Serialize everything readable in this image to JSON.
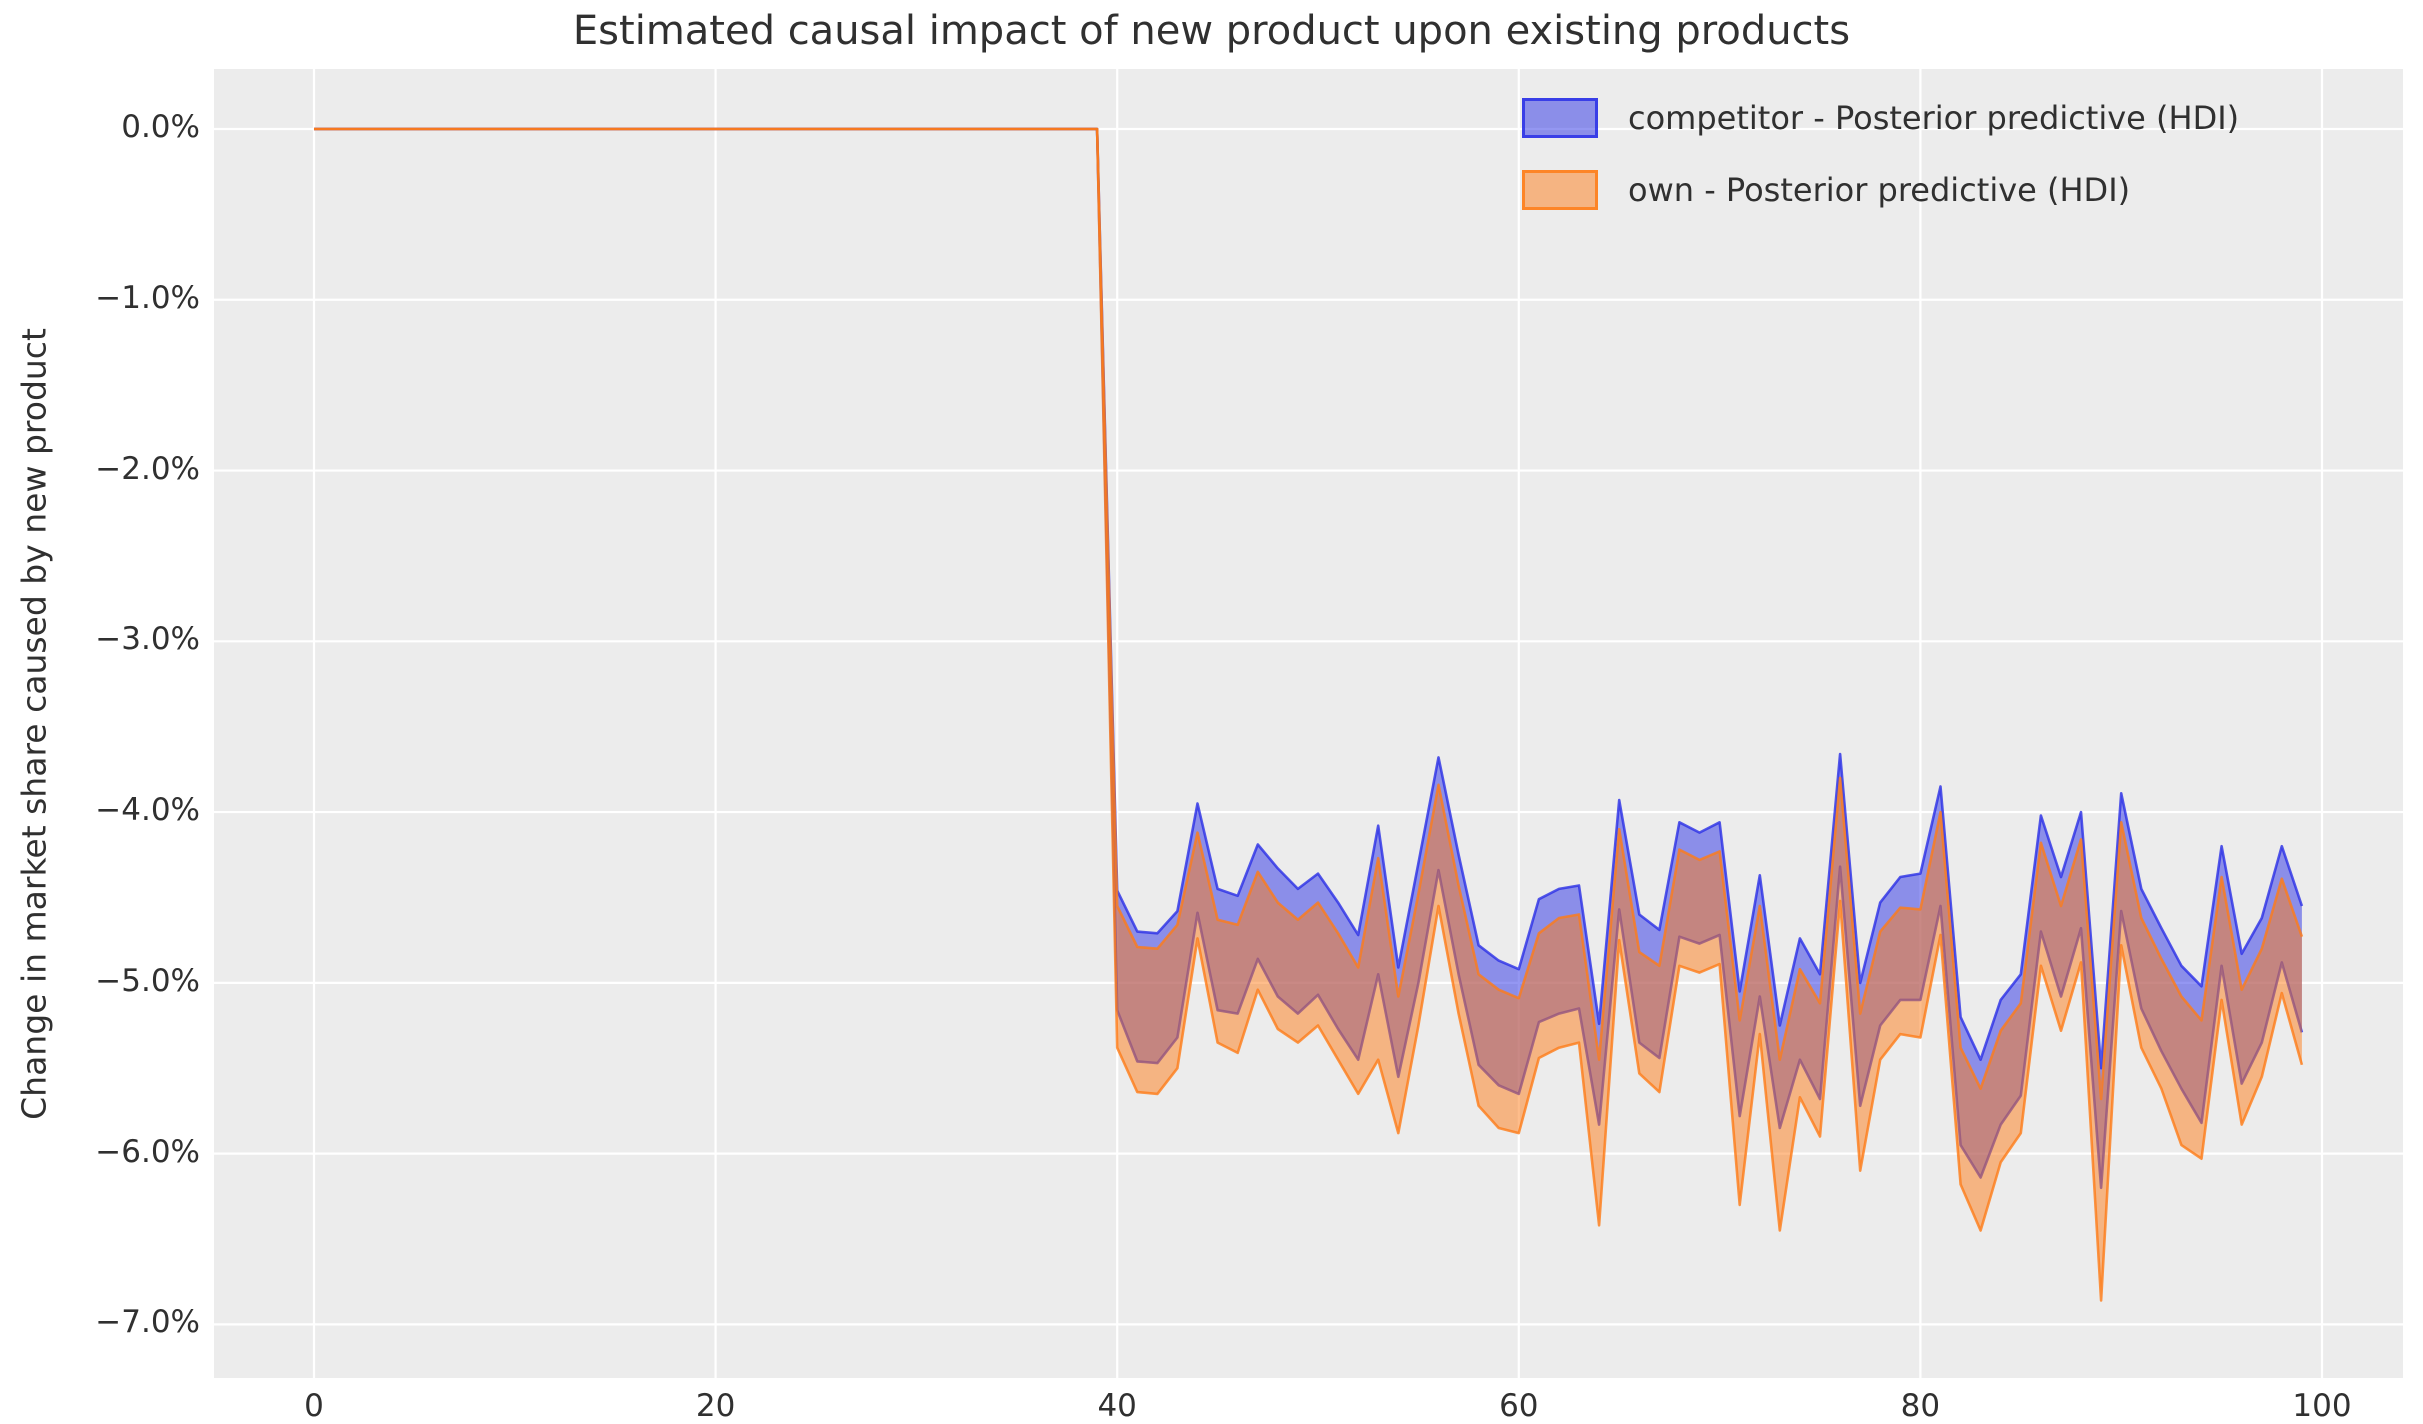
{
  "title": "Estimated causal impact of new product upon existing products",
  "y_axis": {
    "label": "Change in market share caused by new product",
    "tick_labels": [
      "0.0%",
      "−1.0%",
      "−2.0%",
      "−3.0%",
      "−4.0%",
      "−5.0%",
      "−6.0%",
      "−7.0%"
    ],
    "tick_values": [
      0,
      -1,
      -2,
      -3,
      -4,
      -5,
      -6,
      -7
    ]
  },
  "x_axis": {
    "tick_labels": [
      "0",
      "20",
      "40",
      "60",
      "80",
      "100"
    ],
    "tick_values": [
      0,
      20,
      40,
      60,
      80,
      100
    ]
  },
  "legend": {
    "entries": [
      {
        "label": "competitor - Posterior predictive (HDI)",
        "color": "#2a30e6",
        "fill_rgba": "rgba(42,48,230,0.5)",
        "border_rgba": "rgba(42,48,230,0.85)"
      },
      {
        "label": "own - Posterior predictive (HDI)",
        "color": "#fe7c18",
        "fill_rgba": "rgba(254,124,24,0.5)",
        "border_rgba": "rgba(254,124,24,0.85)"
      }
    ]
  },
  "colors": {
    "figure_bg": "#ffffff",
    "plot_bg": "#ececec",
    "grid": "#ffffff",
    "text": "#303030"
  },
  "chart_data": {
    "type": "area",
    "title": "Estimated causal impact of new product upon existing products",
    "xlabel": "",
    "ylabel": "Change in market share caused by new product",
    "units": "percent",
    "xlim": [
      -5,
      104
    ],
    "ylim": [
      -7.3,
      0.35
    ],
    "grid": true,
    "legend_position": "upper right",
    "treatment_start_x": 40,
    "note": "Both HDI bands are exactly 0 for x=0..39 (pre-treatment), then drop sharply at x=40.",
    "x": [
      0,
      1,
      2,
      3,
      4,
      5,
      6,
      7,
      8,
      9,
      10,
      11,
      12,
      13,
      14,
      15,
      16,
      17,
      18,
      19,
      20,
      21,
      22,
      23,
      24,
      25,
      26,
      27,
      28,
      29,
      30,
      31,
      32,
      33,
      34,
      35,
      36,
      37,
      38,
      39,
      40,
      41,
      42,
      43,
      44,
      45,
      46,
      47,
      48,
      49,
      50,
      51,
      52,
      53,
      54,
      55,
      56,
      57,
      58,
      59,
      60,
      61,
      62,
      63,
      64,
      65,
      66,
      67,
      68,
      69,
      70,
      71,
      72,
      73,
      74,
      75,
      76,
      77,
      78,
      79,
      80,
      81,
      82,
      83,
      84,
      85,
      86,
      87,
      88,
      89,
      90,
      91,
      92,
      93,
      94,
      95,
      96,
      97,
      98,
      99
    ],
    "series": [
      {
        "name": "competitor - Posterior predictive (HDI)",
        "color": "#2a30e6",
        "hdi_upper": [
          0,
          0,
          0,
          0,
          0,
          0,
          0,
          0,
          0,
          0,
          0,
          0,
          0,
          0,
          0,
          0,
          0,
          0,
          0,
          0,
          0,
          0,
          0,
          0,
          0,
          0,
          0,
          0,
          0,
          0,
          0,
          0,
          0,
          0,
          0,
          0,
          0,
          0,
          0,
          0,
          -4.46,
          -4.7,
          -4.71,
          -4.58,
          -3.95,
          -4.45,
          -4.49,
          -4.19,
          -4.33,
          -4.45,
          -4.36,
          -4.53,
          -4.72,
          -4.08,
          -4.91,
          -4.3,
          -3.68,
          -4.25,
          -4.78,
          -4.87,
          -4.92,
          -4.51,
          -4.45,
          -4.43,
          -5.24,
          -3.93,
          -4.6,
          -4.69,
          -4.06,
          -4.12,
          -4.06,
          -5.05,
          -4.37,
          -5.25,
          -4.74,
          -4.95,
          -3.66,
          -5.0,
          -4.53,
          -4.38,
          -4.36,
          -3.85,
          -5.2,
          -5.45,
          -5.1,
          -4.95,
          -4.02,
          -4.38,
          -4.0,
          -5.5,
          -3.89,
          -4.45,
          -4.68,
          -4.9,
          -5.02,
          -4.2,
          -4.83,
          -4.62,
          -4.2,
          -4.55
        ],
        "hdi_lower": [
          0,
          0,
          0,
          0,
          0,
          0,
          0,
          0,
          0,
          0,
          0,
          0,
          0,
          0,
          0,
          0,
          0,
          0,
          0,
          0,
          0,
          0,
          0,
          0,
          0,
          0,
          0,
          0,
          0,
          0,
          0,
          0,
          0,
          0,
          0,
          0,
          0,
          0,
          0,
          0,
          -5.16,
          -5.46,
          -5.47,
          -5.32,
          -4.59,
          -5.16,
          -5.18,
          -4.86,
          -5.08,
          -5.18,
          -5.07,
          -5.27,
          -5.45,
          -4.95,
          -5.55,
          -5.0,
          -4.34,
          -4.95,
          -5.48,
          -5.6,
          -5.65,
          -5.23,
          -5.18,
          -5.15,
          -5.83,
          -4.57,
          -5.35,
          -5.44,
          -4.73,
          -4.77,
          -4.72,
          -5.78,
          -5.08,
          -5.85,
          -5.45,
          -5.68,
          -4.32,
          -5.72,
          -5.25,
          -5.1,
          -5.1,
          -4.55,
          -5.95,
          -6.14,
          -5.83,
          -5.66,
          -4.7,
          -5.08,
          -4.68,
          -6.2,
          -4.58,
          -5.15,
          -5.4,
          -5.62,
          -5.82,
          -4.9,
          -5.59,
          -5.35,
          -4.88,
          -5.29
        ]
      },
      {
        "name": "own - Posterior predictive (HDI)",
        "color": "#fe7c18",
        "hdi_upper": [
          0,
          0,
          0,
          0,
          0,
          0,
          0,
          0,
          0,
          0,
          0,
          0,
          0,
          0,
          0,
          0,
          0,
          0,
          0,
          0,
          0,
          0,
          0,
          0,
          0,
          0,
          0,
          0,
          0,
          0,
          0,
          0,
          0,
          0,
          0,
          0,
          0,
          0,
          0,
          0,
          -4.55,
          -4.79,
          -4.8,
          -4.66,
          -4.12,
          -4.63,
          -4.66,
          -4.35,
          -4.53,
          -4.63,
          -4.53,
          -4.71,
          -4.91,
          -4.27,
          -5.08,
          -4.48,
          -3.84,
          -4.43,
          -4.95,
          -5.04,
          -5.09,
          -4.71,
          -4.62,
          -4.6,
          -5.45,
          -4.1,
          -4.82,
          -4.9,
          -4.22,
          -4.28,
          -4.23,
          -5.22,
          -4.55,
          -5.45,
          -4.92,
          -5.12,
          -3.8,
          -5.18,
          -4.7,
          -4.56,
          -4.57,
          -4.0,
          -5.38,
          -5.62,
          -5.28,
          -5.12,
          -4.18,
          -4.55,
          -4.16,
          -5.68,
          -4.06,
          -4.62,
          -4.86,
          -5.08,
          -5.22,
          -4.38,
          -5.04,
          -4.8,
          -4.39,
          -4.73
        ],
        "hdi_lower": [
          0,
          0,
          0,
          0,
          0,
          0,
          0,
          0,
          0,
          0,
          0,
          0,
          0,
          0,
          0,
          0,
          0,
          0,
          0,
          0,
          0,
          0,
          0,
          0,
          0,
          0,
          0,
          0,
          0,
          0,
          0,
          0,
          0,
          0,
          0,
          0,
          0,
          0,
          0,
          0,
          -5.38,
          -5.64,
          -5.65,
          -5.5,
          -4.74,
          -5.35,
          -5.41,
          -5.04,
          -5.27,
          -5.35,
          -5.25,
          -5.45,
          -5.65,
          -5.45,
          -5.88,
          -5.25,
          -4.55,
          -5.18,
          -5.72,
          -5.85,
          -5.88,
          -5.44,
          -5.38,
          -5.35,
          -6.42,
          -4.75,
          -5.53,
          -5.64,
          -4.9,
          -4.94,
          -4.89,
          -6.3,
          -5.3,
          -6.45,
          -5.67,
          -5.9,
          -4.52,
          -6.1,
          -5.45,
          -5.3,
          -5.32,
          -4.72,
          -6.18,
          -6.45,
          -6.05,
          -5.88,
          -4.9,
          -5.28,
          -4.88,
          -6.86,
          -4.78,
          -5.38,
          -5.62,
          -5.95,
          -6.03,
          -5.1,
          -5.83,
          -5.55,
          -5.06,
          -5.48
        ]
      }
    ]
  }
}
